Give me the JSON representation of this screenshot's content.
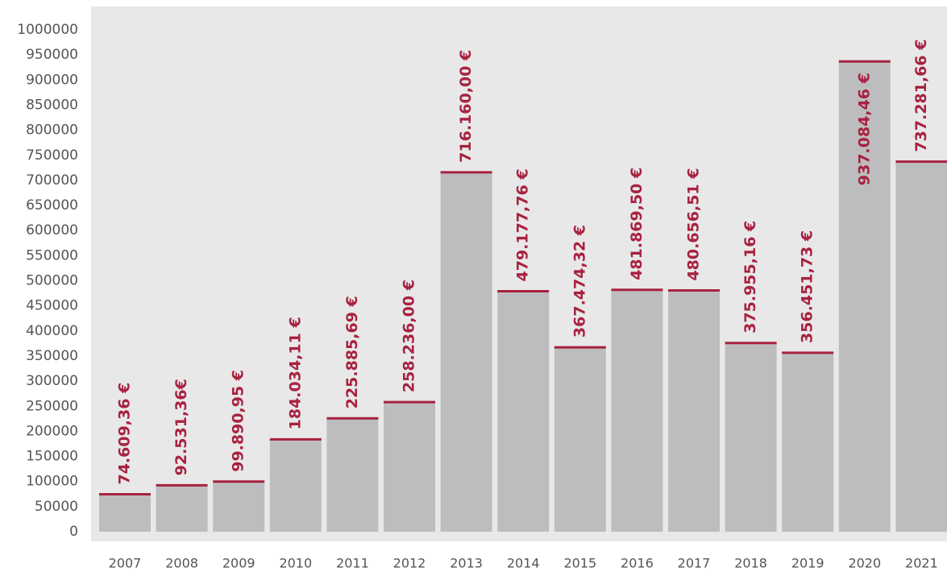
{
  "chart_data": {
    "type": "bar",
    "categories": [
      "2007",
      "2008",
      "2009",
      "2010",
      "2011",
      "2012",
      "2013",
      "2014",
      "2015",
      "2016",
      "2017",
      "2018",
      "2019",
      "2020",
      "2021"
    ],
    "values": [
      74609.36,
      92531.36,
      99890.95,
      184034.11,
      225885.69,
      258236.0,
      716160.0,
      479177.76,
      367474.32,
      481869.5,
      480656.51,
      375955.16,
      356451.73,
      937084.46,
      737281.66
    ],
    "value_labels": [
      "74.609,36 €",
      "92.531,36€",
      "99.890,95 €",
      "184.034,11 €",
      "225.885,69 €",
      "258.236,00 €",
      "716.160,00 €",
      "479.177,76 €",
      "367.474,32 €",
      "481.869,50 €",
      "480.656,51 €",
      "375.955,16 €",
      "356.451,73 €",
      "937.084,46 €",
      "737.281,66 €"
    ],
    "color": "#bdbdbf",
    "accent_color": "#a8223f",
    "ylim": [
      0,
      1000000
    ],
    "yticks": [
      0,
      50000,
      100000,
      150000,
      200000,
      250000,
      300000,
      350000,
      400000,
      450000,
      500000,
      550000,
      600000,
      650000,
      700000,
      750000,
      800000,
      850000,
      900000,
      950000,
      1000000
    ],
    "grid": false
  }
}
